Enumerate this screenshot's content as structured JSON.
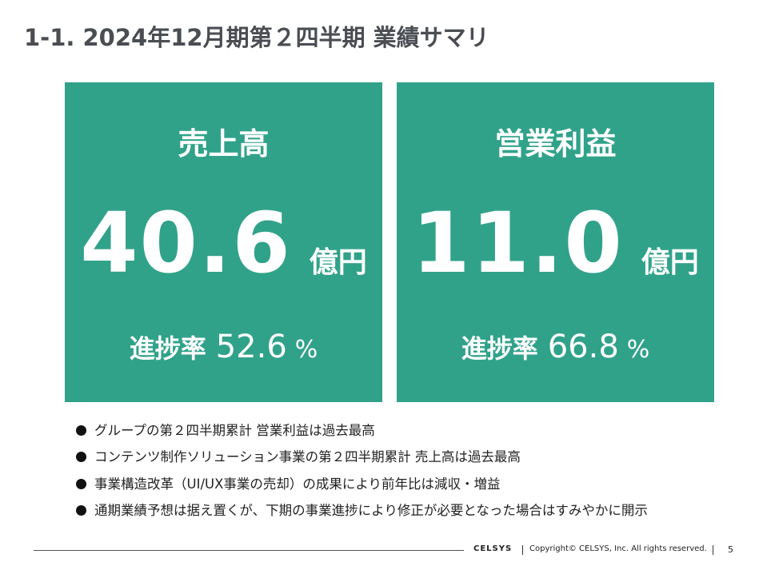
{
  "header": {
    "title": "1-1. 2024年12月期第２四半期 業績サマリ"
  },
  "cards": [
    {
      "label": "売上高",
      "value": "40.6",
      "unit": "億円",
      "progress_label": "進捗率",
      "progress_value": "52.6",
      "progress_unit": "%"
    },
    {
      "label": "営業利益",
      "value": "11.0",
      "unit": "億円",
      "progress_label": "進捗率",
      "progress_value": "66.8",
      "progress_unit": "%"
    }
  ],
  "bullets": [
    "グループの第２四半期累計 営業利益は過去最高",
    "コンテンツ制作ソリューション事業の第２四半期累計 売上高は過去最高",
    "事業構造改革（UI/UX事業の売却）の成果により前年比は減収・増益",
    "通期業績予想は据え置くが、下期の事業進捗により修正が必要となった場合はすみやかに開示"
  ],
  "footer": {
    "brand": "CELSYS",
    "copyright": "Copyright© CELSYS, Inc. All rights reserved.",
    "page": "5"
  }
}
